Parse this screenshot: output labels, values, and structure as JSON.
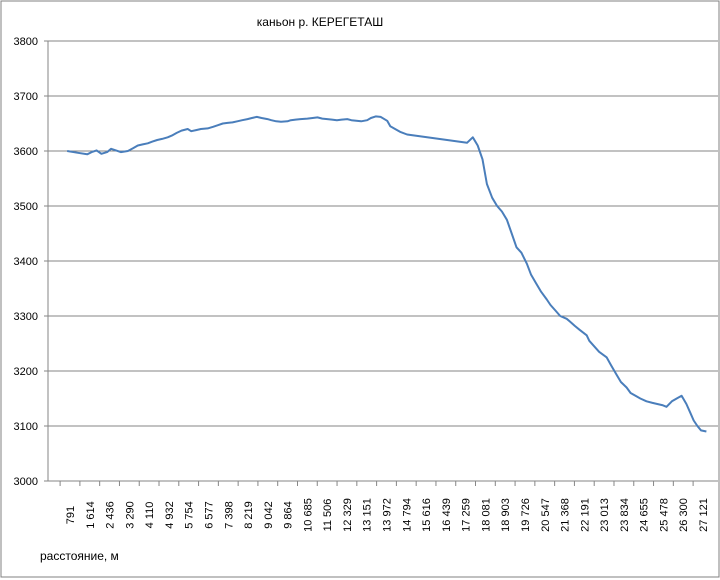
{
  "chart_data": {
    "type": "line",
    "title": "каньон  р. КЕРЕГЕТАШ",
    "xlabel": "расстояние, м",
    "ylabel": "",
    "ylim": [
      3000,
      3800
    ],
    "yticks": [
      3000,
      3100,
      3200,
      3300,
      3400,
      3500,
      3600,
      3700,
      3800
    ],
    "xlim": [
      0,
      27600
    ],
    "xtick_labels": [
      "791",
      "1 614",
      "2 436",
      "3 290",
      "4 110",
      "4 932",
      "5 754",
      "6 577",
      "7 398",
      "8 219",
      "9 042",
      "9 864",
      "10 685",
      "11 506",
      "12 329",
      "13 151",
      "13 972",
      "14 794",
      "15 616",
      "16 439",
      "17 259",
      "18 081",
      "18 903",
      "19 726",
      "20 547",
      "21 368",
      "22 191",
      "23 013",
      "23 834",
      "24 655",
      "25 478",
      "26 300",
      "27 121"
    ],
    "grid": "horizontal",
    "legend": "none",
    "line_color": "#4a7ebb",
    "series": [
      {
        "x": [
          791,
          1200,
          1614,
          1800,
          2000,
          2200,
          2436,
          2600,
          2800,
          3000,
          3290,
          3500,
          3700,
          3900,
          4110,
          4300,
          4500,
          4700,
          4932,
          5100,
          5300,
          5500,
          5754,
          5900,
          6100,
          6300,
          6577,
          6800,
          7000,
          7200,
          7398,
          7600,
          7800,
          8000,
          8219,
          8400,
          8600,
          8800,
          9042,
          9200,
          9400,
          9600,
          9864,
          10000,
          10200,
          10400,
          10685,
          10900,
          11100,
          11300,
          11506,
          11700,
          11900,
          12100,
          12329,
          12500,
          12700,
          12900,
          13151,
          13300,
          13500,
          13700,
          13972,
          14100,
          14300,
          14500,
          14794,
          15616,
          16439,
          17259,
          17500,
          17700,
          17900,
          18081,
          18300,
          18500,
          18700,
          18903,
          19100,
          19300,
          19500,
          19726,
          19900,
          20100,
          20300,
          20547,
          20700,
          20900,
          21100,
          21368,
          21500,
          21700,
          21900,
          22191,
          22300,
          22500,
          22700,
          23013,
          23200,
          23400,
          23600,
          23834,
          24000,
          24200,
          24400,
          24655,
          24900,
          25100,
          25300,
          25478,
          25700,
          25900,
          26100,
          26300,
          26450,
          26600,
          26750,
          26900,
          27121
        ],
        "y": [
          3600,
          3597,
          3594,
          3598,
          3601,
          3595,
          3598,
          3604,
          3601,
          3598,
          3600,
          3605,
          3610,
          3612,
          3614,
          3617,
          3620,
          3622,
          3625,
          3628,
          3633,
          3637,
          3640,
          3636,
          3638,
          3640,
          3641,
          3644,
          3647,
          3650,
          3651,
          3652,
          3654,
          3656,
          3658,
          3660,
          3662,
          3660,
          3658,
          3656,
          3654,
          3653,
          3654,
          3656,
          3657,
          3658,
          3659,
          3660,
          3661,
          3659,
          3658,
          3657,
          3656,
          3657,
          3658,
          3656,
          3655,
          3654,
          3656,
          3660,
          3663,
          3662,
          3655,
          3645,
          3640,
          3635,
          3630,
          3625,
          3620,
          3615,
          3625,
          3610,
          3585,
          3540,
          3515,
          3500,
          3490,
          3475,
          3450,
          3425,
          3415,
          3395,
          3375,
          3360,
          3345,
          3330,
          3320,
          3310,
          3300,
          3295,
          3290,
          3282,
          3275,
          3265,
          3255,
          3245,
          3235,
          3225,
          3210,
          3195,
          3180,
          3170,
          3160,
          3155,
          3150,
          3145,
          3142,
          3140,
          3138,
          3135,
          3145,
          3150,
          3155,
          3140,
          3125,
          3110,
          3100,
          3092,
          3090
        ]
      }
    ]
  }
}
